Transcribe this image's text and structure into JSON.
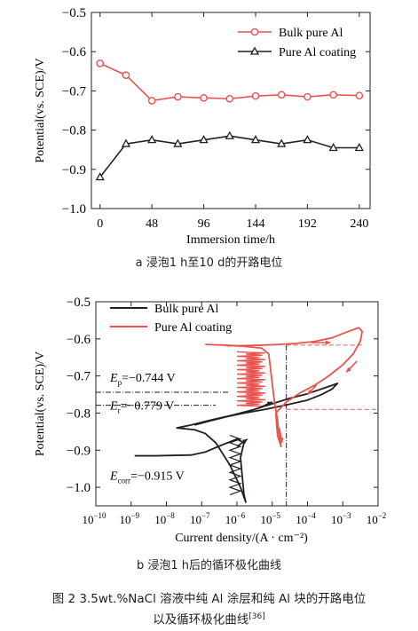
{
  "chart_data": [
    {
      "type": "line",
      "xlabel": "Immersion time/h",
      "ylabel": "Potential(vs. SCE)/V",
      "xlim": [
        -8,
        250
      ],
      "ylim": [
        -1.0,
        -0.5
      ],
      "xticks": [
        0,
        48,
        96,
        144,
        192,
        240
      ],
      "yticks": [
        -0.5,
        -0.6,
        -0.7,
        -0.8,
        -0.9,
        -1.0
      ],
      "ytick_labels": [
        "−0.5",
        "−0.6",
        "−0.7",
        "−0.8",
        "−0.9",
        "−1.0"
      ],
      "legend_position": "top-right",
      "x": [
        0,
        24,
        48,
        72,
        96,
        120,
        144,
        168,
        192,
        216,
        240
      ],
      "series": [
        {
          "name": "Bulk pure Al",
          "color": "#e8534e",
          "marker": "circle",
          "values": [
            -0.63,
            -0.66,
            -0.725,
            -0.715,
            -0.718,
            -0.72,
            -0.713,
            -0.71,
            -0.715,
            -0.71,
            -0.712
          ]
        },
        {
          "name": "Pure Al coating",
          "color": "#231f20",
          "marker": "triangle",
          "values": [
            -0.92,
            -0.835,
            -0.825,
            -0.835,
            -0.825,
            -0.815,
            -0.825,
            -0.835,
            -0.825,
            -0.845,
            -0.845
          ]
        }
      ]
    },
    {
      "type": "line",
      "xlabel": "Current density/(A · cm⁻²)",
      "ylabel": "Potential(vs. SCE)/V",
      "log_x": true,
      "xlim_exp": [
        -10,
        -2
      ],
      "ylim": [
        -1.05,
        -0.5
      ],
      "xtick_exps": [
        -10,
        -9,
        -8,
        -7,
        -6,
        -5,
        -4,
        -3,
        -2
      ],
      "yticks": [
        -0.5,
        -0.6,
        -0.7,
        -0.8,
        -0.9,
        -1.0
      ],
      "ytick_labels": [
        "−0.5",
        "−0.6",
        "−0.7",
        "−0.8",
        "−0.9",
        "−1.0"
      ],
      "legend_position": "top-left",
      "series": [
        {
          "name": "Bulk pure Al",
          "color": "#231f20",
          "points": [
            [
              -8.9,
              -0.915
            ],
            [
              -8.3,
              -0.915
            ],
            [
              -7.3,
              -0.913
            ],
            [
              -6.9,
              -0.905
            ],
            [
              -6.4,
              -0.885
            ],
            [
              -6.0,
              -0.87
            ],
            [
              -5.8,
              -0.88
            ],
            [
              -5.9,
              -0.92
            ],
            [
              -5.85,
              -0.97
            ],
            [
              -5.8,
              -1.02
            ],
            [
              -5.75,
              -1.04
            ],
            [
              -5.9,
              -1.0
            ],
            [
              -6.2,
              -0.94
            ],
            [
              -6.6,
              -0.88
            ],
            [
              -6.9,
              -0.855
            ],
            [
              -7.2,
              -0.845
            ],
            [
              -7.7,
              -0.84
            ],
            [
              -7.3,
              -0.832
            ],
            [
              -6.8,
              -0.82
            ],
            [
              -6.1,
              -0.805
            ],
            [
              -5.5,
              -0.79
            ],
            [
              -5.0,
              -0.775
            ],
            [
              -4.5,
              -0.76
            ],
            [
              -4.0,
              -0.748
            ],
            [
              -3.6,
              -0.735
            ],
            [
              -3.3,
              -0.725
            ],
            [
              -3.15,
              -0.72
            ],
            [
              -3.3,
              -0.735
            ],
            [
              -3.6,
              -0.75
            ],
            [
              -4.0,
              -0.765
            ],
            [
              -4.6,
              -0.778
            ],
            [
              -5.2,
              -0.79
            ],
            [
              -5.8,
              -0.8
            ],
            [
              -6.3,
              -0.81
            ],
            [
              -6.8,
              -0.822
            ],
            [
              -7.2,
              -0.832
            ]
          ]
        },
        {
          "name": "Pure Al coating",
          "color": "#e8534e",
          "points": [
            [
              -6.9,
              -0.615
            ],
            [
              -6.3,
              -0.617
            ],
            [
              -5.8,
              -0.62
            ],
            [
              -5.3,
              -0.625
            ],
            [
              -5.1,
              -0.64
            ],
            [
              -5.05,
              -0.68
            ],
            [
              -5.0,
              -0.72
            ],
            [
              -4.95,
              -0.76
            ],
            [
              -4.9,
              -0.79
            ],
            [
              -4.85,
              -0.82
            ],
            [
              -4.8,
              -0.86
            ],
            [
              -4.75,
              -0.89
            ],
            [
              -4.85,
              -0.86
            ],
            [
              -4.9,
              -0.8
            ],
            [
              -4.6,
              -0.77
            ],
            [
              -4.2,
              -0.745
            ],
            [
              -3.8,
              -0.725
            ],
            [
              -3.4,
              -0.7
            ],
            [
              -3.0,
              -0.67
            ],
            [
              -2.7,
              -0.64
            ],
            [
              -2.5,
              -0.605
            ],
            [
              -2.45,
              -0.58
            ],
            [
              -2.55,
              -0.57
            ],
            [
              -2.9,
              -0.582
            ],
            [
              -3.3,
              -0.597
            ],
            [
              -3.8,
              -0.607
            ],
            [
              -4.3,
              -0.612
            ],
            [
              -4.8,
              -0.615
            ],
            [
              -5.3,
              -0.617
            ],
            [
              -5.8,
              -0.618
            ],
            [
              -6.3,
              -0.619
            ]
          ]
        }
      ],
      "annotations": {
        "ep_label": "E",
        "ep_sub": "p",
        "ep_value": "=−0.744 V",
        "er_label": "E",
        "er_sub": "r",
        "er_value": "=−0.779 V",
        "ecorr_label": "E",
        "ecorr_sub": "corr",
        "ecorr_value": "=−0.915 V"
      }
    }
  ],
  "captions": {
    "a": "a  浸泡1 h至10 d的开路电位",
    "b": "b  浸泡1 h后的循环极化曲线",
    "figure_line1": "图 2    3.5wt.%NaCl 溶液中纯 Al 涂层和纯 Al 块的开路电位",
    "figure_line2": "以及循环极化曲线",
    "figure_ref": "[36]"
  }
}
